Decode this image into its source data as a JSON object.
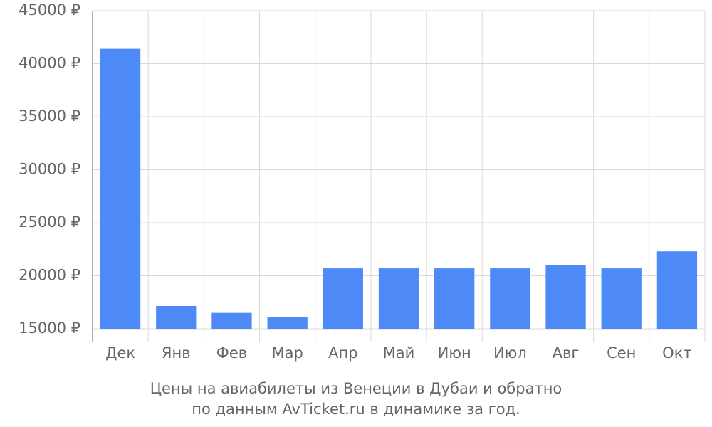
{
  "chart_data": {
    "type": "bar",
    "title_lines": [
      "Цены на авиабилеты из Венеции в Дубаи и обратно",
      "по данным AvTicket.ru в динамике за год."
    ],
    "categories": [
      "Дек",
      "Янв",
      "Фев",
      "Мар",
      "Апр",
      "Май",
      "Июн",
      "Июл",
      "Авг",
      "Сен",
      "Окт"
    ],
    "values": [
      41400,
      17150,
      16500,
      16100,
      20700,
      20700,
      20700,
      20700,
      21000,
      20700,
      22300
    ],
    "color": "#4d8af8",
    "ylim": [
      15000,
      45000
    ],
    "yticks": [
      {
        "value": 15000,
        "label": "15000 ₽"
      },
      {
        "value": 20000,
        "label": "20000 ₽"
      },
      {
        "value": 25000,
        "label": "25000 ₽"
      },
      {
        "value": 30000,
        "label": "30000 ₽"
      },
      {
        "value": 35000,
        "label": "35000 ₽"
      },
      {
        "value": 40000,
        "label": "40000 ₽"
      },
      {
        "value": 45000,
        "label": "45000 ₽"
      }
    ],
    "grid": true
  }
}
